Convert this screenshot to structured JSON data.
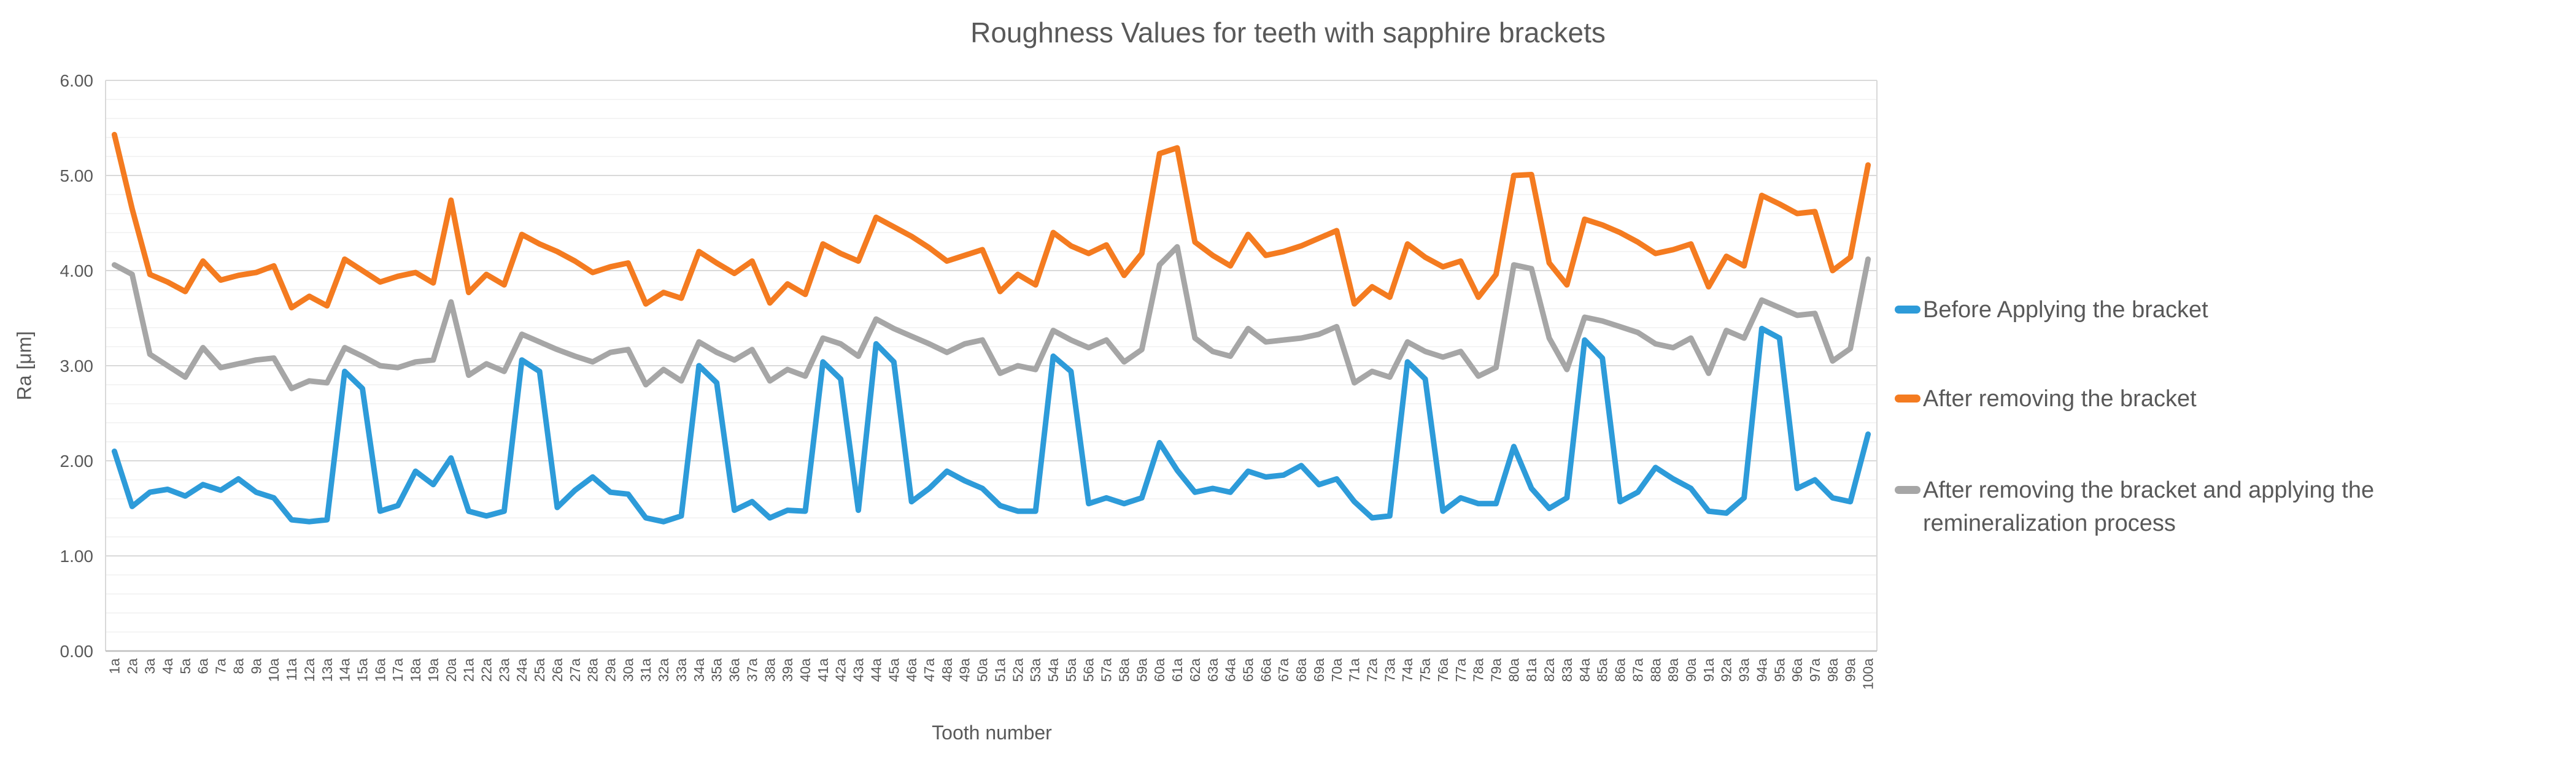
{
  "chart": {
    "title": "Roughness Values for teeth with sapphire brackets",
    "x_axis_title": "Tooth number",
    "y_axis_title": "Ra [μm]",
    "colors": {
      "blue_series": "#2D9BD9",
      "orange_series": "#F47B20",
      "gray_series": "#A6A6A6",
      "major_gridline": "#D9D9D9",
      "minor_gridline": "#F0F0F0",
      "axis_line": "#BFBFBF",
      "text": "#595959"
    },
    "y_tick_labels": [
      "0.00",
      "1.00",
      "2.00",
      "3.00",
      "4.00",
      "5.00",
      "6.00"
    ]
  },
  "chart_data": {
    "type": "line",
    "title": "Roughness Values for teeth with sapphire brackets",
    "xlabel": "Tooth number",
    "ylabel": "Ra [μm]",
    "ylim": [
      0,
      6
    ],
    "y_major_step": 1.0,
    "y_minor_step": 0.2,
    "grid": "horizontal major and minor gridlines",
    "legend_position": "right",
    "x_tick_rotation": -90,
    "categories": [
      "1a",
      "2a",
      "3a",
      "4a",
      "5a",
      "6a",
      "7a",
      "8a",
      "9a",
      "10a",
      "11a",
      "12a",
      "13a",
      "14a",
      "15a",
      "16a",
      "17a",
      "18a",
      "19a",
      "20a",
      "21a",
      "22a",
      "23a",
      "24a",
      "25a",
      "26a",
      "27a",
      "28a",
      "29a",
      "30a",
      "31a",
      "32a",
      "33a",
      "34a",
      "35a",
      "36a",
      "37a",
      "38a",
      "39a",
      "40a",
      "41a",
      "42a",
      "43a",
      "44a",
      "45a",
      "46a",
      "47a",
      "48a",
      "49a",
      "50a",
      "51a",
      "52a",
      "53a",
      "54a",
      "55a",
      "56a",
      "57a",
      "58a",
      "59a",
      "60a",
      "61a",
      "62a",
      "63a",
      "64a",
      "65a",
      "66a",
      "67a",
      "68a",
      "69a",
      "70a",
      "71a",
      "72a",
      "73a",
      "74a",
      "75a",
      "76a",
      "77a",
      "78a",
      "79a",
      "80a",
      "81a",
      "82a",
      "83a",
      "84a",
      "85a",
      "86a",
      "87a",
      "88a",
      "89a",
      "90a",
      "91a",
      "92a",
      "93a",
      "94a",
      "95a",
      "96a",
      "97a",
      "98a",
      "99a",
      "100a"
    ],
    "series": [
      {
        "name": "Before Applying the bracket",
        "color": "#2D9BD9",
        "values": [
          2.1,
          1.52,
          1.67,
          1.7,
          1.63,
          1.75,
          1.69,
          1.81,
          1.67,
          1.61,
          1.38,
          1.36,
          1.38,
          2.94,
          2.76,
          1.47,
          1.53,
          1.89,
          1.75,
          2.03,
          1.47,
          1.42,
          1.47,
          3.06,
          2.94,
          1.51,
          1.69,
          1.83,
          1.67,
          1.65,
          1.4,
          1.36,
          1.42,
          3.0,
          2.82,
          1.48,
          1.57,
          1.4,
          1.48,
          1.47,
          3.04,
          2.86,
          1.48,
          3.23,
          3.04,
          1.57,
          1.71,
          1.89,
          1.79,
          1.71,
          1.53,
          1.47,
          1.47,
          3.1,
          2.94,
          1.55,
          1.61,
          1.55,
          1.61,
          2.19,
          1.9,
          1.67,
          1.71,
          1.67,
          1.89,
          1.83,
          1.85,
          1.95,
          1.75,
          1.81,
          1.57,
          1.4,
          1.42,
          3.04,
          2.86,
          1.47,
          1.61,
          1.55,
          1.55,
          2.15,
          1.71,
          1.5,
          1.61,
          3.27,
          3.08,
          1.57,
          1.67,
          1.93,
          1.81,
          1.71,
          1.47,
          1.45,
          1.61,
          3.39,
          3.29,
          1.71,
          1.8,
          1.61,
          1.57,
          2.28
        ]
      },
      {
        "name": "After removing the bracket",
        "color": "#F47B20",
        "values": [
          5.43,
          4.65,
          3.96,
          3.88,
          3.78,
          4.1,
          3.9,
          3.95,
          3.98,
          4.05,
          3.61,
          3.73,
          3.63,
          4.12,
          4.0,
          3.88,
          3.94,
          3.98,
          3.87,
          4.74,
          3.77,
          3.96,
          3.85,
          4.38,
          4.28,
          4.2,
          4.1,
          3.98,
          4.04,
          4.08,
          3.65,
          3.77,
          3.71,
          4.2,
          4.08,
          3.97,
          4.1,
          3.66,
          3.86,
          3.75,
          4.28,
          4.18,
          4.1,
          4.56,
          4.46,
          4.36,
          4.24,
          4.1,
          4.16,
          4.22,
          3.78,
          3.96,
          3.85,
          4.4,
          4.26,
          4.18,
          4.27,
          3.95,
          4.18,
          5.23,
          5.29,
          4.3,
          4.16,
          4.05,
          4.38,
          4.16,
          4.2,
          4.26,
          4.34,
          4.42,
          3.65,
          3.83,
          3.72,
          4.28,
          4.14,
          4.04,
          4.1,
          3.72,
          3.96,
          5.0,
          5.01,
          4.08,
          3.85,
          4.54,
          4.48,
          4.4,
          4.3,
          4.18,
          4.22,
          4.28,
          3.83,
          4.15,
          4.05,
          4.79,
          4.7,
          4.6,
          4.62,
          4.0,
          4.14,
          5.11
        ]
      },
      {
        "name": "After removing the bracket and applying the remineralization process",
        "color": "#A6A6A6",
        "values": [
          4.06,
          3.96,
          3.12,
          3.0,
          2.88,
          3.19,
          2.98,
          3.02,
          3.06,
          3.08,
          2.76,
          2.84,
          2.82,
          3.19,
          3.1,
          3.0,
          2.98,
          3.04,
          3.06,
          3.67,
          2.9,
          3.02,
          2.94,
          3.33,
          3.25,
          3.17,
          3.1,
          3.04,
          3.14,
          3.17,
          2.8,
          2.96,
          2.84,
          3.25,
          3.14,
          3.06,
          3.17,
          2.84,
          2.96,
          2.89,
          3.29,
          3.23,
          3.1,
          3.49,
          3.39,
          3.31,
          3.23,
          3.14,
          3.23,
          3.27,
          2.92,
          3.0,
          2.96,
          3.37,
          3.27,
          3.19,
          3.27,
          3.04,
          3.17,
          4.06,
          4.25,
          3.29,
          3.15,
          3.1,
          3.39,
          3.25,
          3.27,
          3.29,
          3.33,
          3.41,
          2.82,
          2.94,
          2.88,
          3.25,
          3.15,
          3.09,
          3.15,
          2.89,
          2.98,
          4.06,
          4.02,
          3.29,
          2.96,
          3.51,
          3.47,
          3.41,
          3.35,
          3.23,
          3.19,
          3.29,
          2.92,
          3.37,
          3.29,
          3.69,
          3.61,
          3.53,
          3.55,
          3.05,
          3.18,
          4.12
        ]
      }
    ]
  }
}
